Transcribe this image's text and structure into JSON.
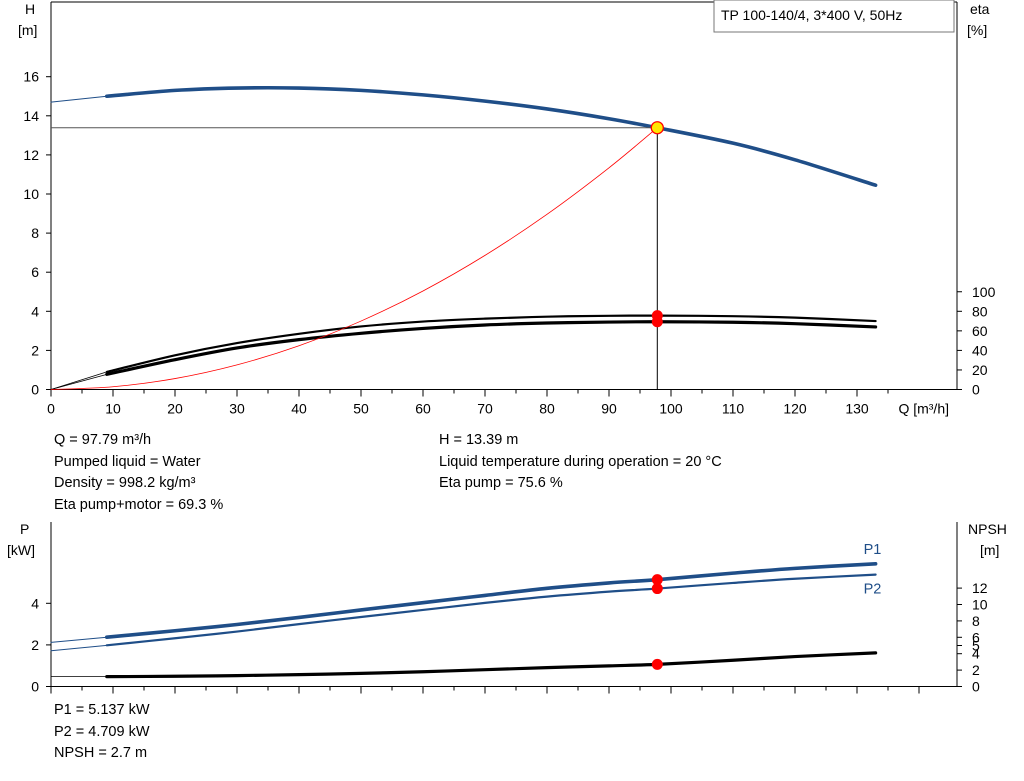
{
  "colors": {
    "head_curve": "#1F4E88",
    "power_curve": "#1F4E88",
    "efficiency_curve": "#000000",
    "npsh_curve": "#000000",
    "system_curve": "#FF0000",
    "duty_point_marker": "#FF0000",
    "operating_point_fill": "#FFE600"
  },
  "chart_data": [
    {
      "type": "line",
      "legend_box": "TP 100-140/4, 3*400 V, 50Hz",
      "xlabel": "Q [m³/h]",
      "x_ticks": [
        0,
        10,
        20,
        30,
        40,
        50,
        60,
        70,
        80,
        90,
        100,
        110,
        120,
        130
      ],
      "xlim": [
        0,
        145
      ],
      "y_left": {
        "label_top": "H",
        "label_unit": "[m]",
        "ticks": [
          0,
          2,
          4,
          6,
          8,
          10,
          12,
          14,
          16
        ],
        "ylim": [
          0,
          19.8
        ]
      },
      "y_right": {
        "label_top": "eta",
        "label_unit": "[%]",
        "ticks": [
          0,
          20,
          40,
          60,
          80,
          100
        ],
        "ylim": [
          0,
          198
        ]
      },
      "grid": false,
      "series": [
        {
          "key": "head",
          "axis": "left",
          "style": "thick-blue",
          "x": [
            9,
            20,
            30,
            40,
            50,
            60,
            70,
            80,
            90,
            97.79,
            110,
            120,
            133
          ],
          "y": [
            15.0,
            15.3,
            15.42,
            15.42,
            15.3,
            15.07,
            14.75,
            14.35,
            13.85,
            13.39,
            12.6,
            11.75,
            10.45
          ]
        },
        {
          "key": "head_extrap",
          "axis": "left",
          "style": "thin-blue",
          "x": [
            0,
            9
          ],
          "y": [
            14.7,
            15.0
          ]
        },
        {
          "key": "eta_pump",
          "axis": "right",
          "style": "medium-black",
          "x": [
            9,
            20,
            30,
            40,
            50,
            60,
            70,
            80,
            90,
            97.79,
            110,
            120,
            133
          ],
          "y": [
            18,
            35,
            47.5,
            57,
            64.5,
            69.5,
            72.5,
            74.5,
            75.4,
            75.6,
            75,
            73.5,
            70
          ]
        },
        {
          "key": "eta_pump_extrap",
          "axis": "right",
          "style": "thin-black",
          "x": [
            0,
            9
          ],
          "y": [
            0,
            18
          ]
        },
        {
          "key": "eta_pump_motor",
          "axis": "right",
          "style": "thick-black",
          "x": [
            9,
            20,
            30,
            40,
            50,
            60,
            70,
            80,
            90,
            97.79,
            110,
            120,
            133
          ],
          "y": [
            15.5,
            30.5,
            42.5,
            51,
            57.5,
            62.5,
            66,
            68,
            69,
            69.3,
            68.8,
            67.3,
            64
          ]
        },
        {
          "key": "eta_pump_motor_extrap",
          "axis": "right",
          "style": "thin-black",
          "x": [
            0,
            9
          ],
          "y": [
            0,
            15.5
          ]
        },
        {
          "key": "system_curve",
          "axis": "left",
          "style": "thin-red",
          "x": [
            0,
            10,
            20,
            30,
            40,
            50,
            60,
            70,
            80,
            90,
            97.79
          ],
          "y": [
            0,
            0.14,
            0.56,
            1.26,
            2.24,
            3.5,
            5.04,
            6.86,
            8.96,
            11.34,
            13.39
          ]
        }
      ],
      "duty_point": {
        "Q": 97.79,
        "H": 13.39,
        "eta_pump": 75.6,
        "eta_pump_motor": 69.3
      }
    },
    {
      "type": "line",
      "xlim": [
        0,
        145
      ],
      "y_left": {
        "label_top": "P",
        "label_unit": "[kW]",
        "ticks": [
          0,
          2,
          4
        ],
        "ylim": [
          0,
          6.9
        ]
      },
      "y_right": {
        "label_top": "NPSH",
        "label_unit": "[m]",
        "ticks": [
          0,
          2,
          4,
          5,
          6,
          8,
          10,
          12
        ],
        "ylim": [
          0,
          17.5
        ]
      },
      "grid": false,
      "series": [
        {
          "key": "p1",
          "name": "P1",
          "axis": "left",
          "style": "thick-blue",
          "x": [
            9,
            20,
            30,
            40,
            50,
            60,
            70,
            80,
            90,
            97.79,
            110,
            120,
            133
          ],
          "y": [
            2.37,
            2.68,
            2.98,
            3.32,
            3.68,
            4.03,
            4.38,
            4.72,
            4.98,
            5.137,
            5.45,
            5.68,
            5.9
          ]
        },
        {
          "key": "p1_extrap",
          "axis": "left",
          "style": "thin-blue",
          "x": [
            0,
            9
          ],
          "y": [
            2.12,
            2.37
          ]
        },
        {
          "key": "p2",
          "name": "P2",
          "axis": "left",
          "style": "medium-blue",
          "x": [
            9,
            20,
            30,
            40,
            50,
            60,
            70,
            80,
            90,
            97.79,
            110,
            120,
            133
          ],
          "y": [
            1.98,
            2.32,
            2.64,
            3.0,
            3.34,
            3.68,
            4.02,
            4.32,
            4.56,
            4.709,
            4.98,
            5.18,
            5.38
          ]
        },
        {
          "key": "p2_extrap",
          "axis": "left",
          "style": "thin-blue",
          "x": [
            0,
            9
          ],
          "y": [
            1.72,
            1.98
          ]
        },
        {
          "key": "npsh",
          "axis": "right",
          "style": "thick-black",
          "x": [
            9,
            20,
            30,
            40,
            50,
            60,
            70,
            80,
            90,
            97.79,
            110,
            120,
            133
          ],
          "y": [
            1.2,
            1.25,
            1.33,
            1.45,
            1.6,
            1.8,
            2.05,
            2.3,
            2.52,
            2.7,
            3.2,
            3.65,
            4.1
          ]
        },
        {
          "key": "npsh_extrap",
          "axis": "right",
          "style": "thin-black",
          "x": [
            0,
            9
          ],
          "y": [
            1.2,
            1.2
          ]
        }
      ],
      "duty_point": {
        "Q": 97.79,
        "P1": 5.137,
        "P2": 4.709,
        "NPSH": 2.7
      }
    }
  ],
  "info_main": {
    "left": [
      "Q = 97.79 m³/h",
      "Pumped liquid = Water",
      "Density = 998.2 kg/m³",
      "Eta pump+motor = 69.3 %"
    ],
    "right": [
      "H = 13.39 m",
      "Liquid temperature during operation = 20 °C",
      "Eta pump = 75.6 %"
    ]
  },
  "info_power": [
    "P1 = 5.137 kW",
    "P2 = 4.709 kW",
    "NPSH = 2.7 m"
  ]
}
